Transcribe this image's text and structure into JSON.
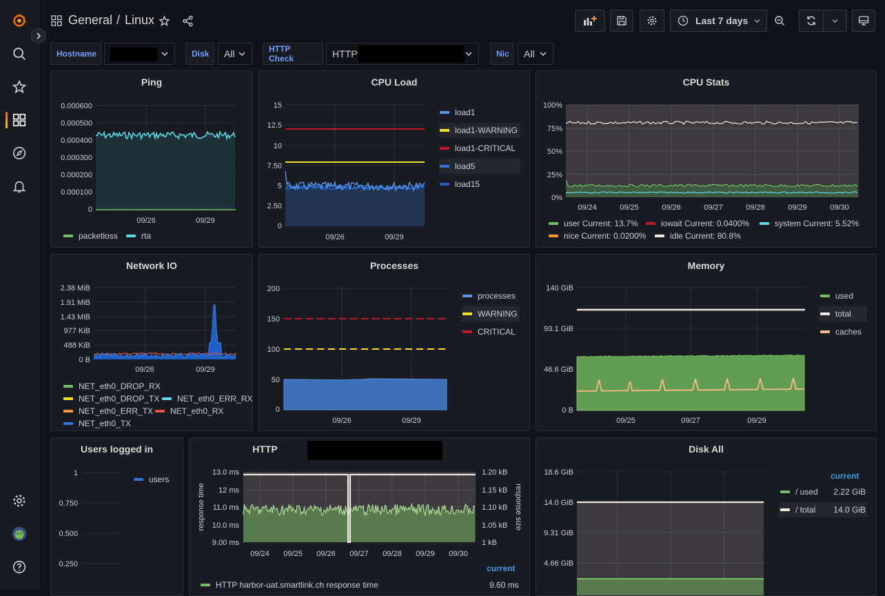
{
  "breadcrumb": {
    "folder": "General",
    "separator": "/",
    "dashboard": "Linux"
  },
  "toolbar": {
    "time_range": "Last 7 days"
  },
  "variables": [
    {
      "label": "Hostname",
      "value": ""
    },
    {
      "label": "Disk",
      "value": "All"
    },
    {
      "label": "HTTP Check",
      "value": "HTTP"
    },
    {
      "label": "Nic",
      "value": "All"
    }
  ],
  "colors": {
    "green": "#73bf69",
    "yellow": "#fade2a",
    "red": "#c4162a",
    "blue": "#1f60c4",
    "lightblue": "#5794f2",
    "cyan": "#5ad8e6",
    "orange": "#ff9830",
    "white": "#f2e8e4",
    "peach": "#f9b98b",
    "grey": "#3c3f44"
  },
  "panels": {
    "ping": {
      "title": "Ping",
      "yticks": [
        "0.000600",
        "0.000500",
        "0.000400",
        "0.000300",
        "0.000200",
        "0.000100",
        "0"
      ],
      "xticks": [
        "09/26",
        "09/29"
      ],
      "legend": [
        "packetloss",
        "rta"
      ]
    },
    "cpu_load": {
      "title": "CPU Load",
      "yticks": [
        "15",
        "12.5",
        "10",
        "7.50",
        "5",
        "2.50",
        "0"
      ],
      "xticks": [
        "09/26",
        "09/29"
      ],
      "legend": [
        "load1",
        "load1-WARNING",
        "load1-CRITICAL",
        "load5",
        "load15"
      ]
    },
    "cpu_stats": {
      "title": "CPU Stats",
      "yticks": [
        "100%",
        "75%",
        "50%",
        "25%",
        "0%"
      ],
      "xticks": [
        "09/24",
        "09/25",
        "09/26",
        "09/27",
        "09/28",
        "09/29",
        "09/30"
      ],
      "legend": [
        {
          "name": "user",
          "current": "Current: 13.7%"
        },
        {
          "name": "iowait",
          "current": "Current: 0.0400%"
        },
        {
          "name": "system",
          "current": "Current: 5.52%"
        },
        {
          "name": "nice",
          "current": "Current: 0.0200%"
        },
        {
          "name": "idle",
          "current": "Current: 80.8%"
        }
      ]
    },
    "network_io": {
      "title": "Network IO",
      "yticks": [
        "2.38 MiB",
        "1.91 MiB",
        "1.43 MiB",
        "977 KiB",
        "488 KiB",
        "0 B"
      ],
      "xticks": [
        "09/26",
        "09/29"
      ],
      "legend": [
        "NET_eth0_DROP_RX",
        "NET_eth0_DROP_TX",
        "NET_eth0_ERR_RX",
        "NET_eth0_ERR_TX",
        "NET_eth0_RX",
        "NET_eth0_TX"
      ]
    },
    "processes": {
      "title": "Processes",
      "yticks": [
        "200",
        "150",
        "100",
        "50",
        "0"
      ],
      "xticks": [
        "09/26",
        "09/29"
      ],
      "legend": [
        "processes",
        "WARNING",
        "CRITICAL"
      ]
    },
    "memory": {
      "title": "Memory",
      "yticks": [
        "140 GiB",
        "93.1 GiB",
        "46.6 GiB",
        "0 B"
      ],
      "xticks": [
        "09/25",
        "09/27",
        "09/29"
      ],
      "legend": [
        "used",
        "total",
        "caches"
      ]
    },
    "users": {
      "title": "Users logged in",
      "yticks": [
        "1",
        "0.750",
        "0.500",
        "0.250"
      ],
      "legend": [
        "users"
      ]
    },
    "http": {
      "title": "HTTP",
      "yticks_left": [
        "13.0 ms",
        "12 ms",
        "11.0 ms",
        "10.0 ms",
        "9.00 ms"
      ],
      "yticks_right": [
        "1.20 kB",
        "1.15 kB",
        "1.10 kB",
        "1.05 kB",
        "1 kB"
      ],
      "ylabel_left": "response time",
      "ylabel_right": "response size",
      "xticks": [
        "09/24",
        "09/25",
        "09/26",
        "09/27",
        "09/28",
        "09/29",
        "09/30"
      ],
      "legend_header": "current",
      "legend": [
        {
          "name": "HTTP harbor-uat.smartlink.ch response time",
          "current": "9.60 ms"
        }
      ]
    },
    "disk": {
      "title": "Disk All",
      "yticks": [
        "18.6 GiB",
        "14.0 GiB",
        "9.31 GiB",
        "4.66 GiB"
      ],
      "legend_header": "current",
      "legend": [
        {
          "name": "/ used",
          "current": "2.22 GiB"
        },
        {
          "name": "/ total",
          "current": "14.0 GiB"
        }
      ]
    }
  }
}
